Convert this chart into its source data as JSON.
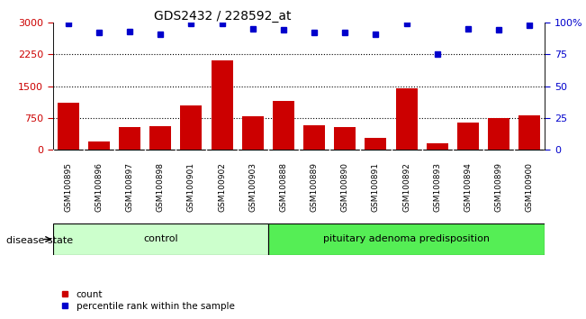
{
  "title": "GDS2432 / 228592_at",
  "categories": [
    "GSM100895",
    "GSM100896",
    "GSM100897",
    "GSM100898",
    "GSM100901",
    "GSM100902",
    "GSM100903",
    "GSM100888",
    "GSM100889",
    "GSM100890",
    "GSM100891",
    "GSM100892",
    "GSM100893",
    "GSM100894",
    "GSM100899",
    "GSM100900"
  ],
  "bar_values": [
    1100,
    200,
    530,
    560,
    1050,
    2100,
    800,
    1150,
    570,
    540,
    290,
    1450,
    160,
    650,
    760,
    820
  ],
  "dot_values": [
    99,
    92,
    93,
    91,
    99,
    99,
    95,
    94,
    92,
    92,
    91,
    99,
    75,
    95,
    94,
    98
  ],
  "bar_color": "#cc0000",
  "dot_color": "#0000cc",
  "ylim_left": [
    0,
    3000
  ],
  "ylim_right": [
    0,
    100
  ],
  "yticks_left": [
    0,
    750,
    1500,
    2250,
    3000
  ],
  "yticks_right": [
    0,
    25,
    50,
    75,
    100
  ],
  "control_count": 7,
  "group1_label": "control",
  "group2_label": "pituitary adenoma predisposition",
  "group1_color": "#ccffcc",
  "group2_color": "#55ee55",
  "disease_state_label": "disease state",
  "legend_bar": "count",
  "legend_dot": "percentile rank within the sample",
  "xtick_bg_color": "#c8c8c8",
  "right_axis_label_color": "#0000cc",
  "left_axis_label_color": "#cc0000"
}
